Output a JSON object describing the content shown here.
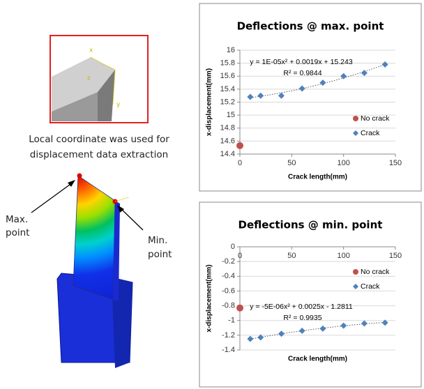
{
  "figure": {
    "inset_axes": [
      "x",
      "z",
      "y"
    ],
    "caption": [
      "Local coordinate was used for",
      "displacement data extraction"
    ],
    "max_label": [
      "Max.",
      "point"
    ],
    "min_label": [
      "Min.",
      "point"
    ]
  },
  "chart_data": [
    {
      "type": "scatter",
      "title": "Deflections @ max. point",
      "x_label": "Crack length(mm)",
      "y_label": "x-displacement(mm)",
      "xlim": [
        0,
        150
      ],
      "xticks": [
        0,
        50,
        100,
        150
      ],
      "ylim": [
        14.4,
        16
      ],
      "yticks": [
        14.4,
        14.6,
        14.8,
        15,
        15.2,
        15.4,
        15.6,
        15.8,
        16
      ],
      "grid": true,
      "legend": "right",
      "annotations": [
        "y = 1E-05x² + 0.0019x + 15.243",
        "R² = 0.9844"
      ],
      "series": [
        {
          "name": "No crack",
          "color": "#c0504d",
          "marker": "circle",
          "x": [
            0
          ],
          "values": [
            14.53
          ]
        },
        {
          "name": "Crack",
          "color": "#4f81bd",
          "marker": "diamond",
          "trendline": true,
          "x": [
            10,
            20,
            40,
            60,
            80,
            100,
            120,
            140
          ],
          "values": [
            15.28,
            15.3,
            15.3,
            15.41,
            15.5,
            15.6,
            15.65,
            15.78
          ]
        }
      ]
    },
    {
      "type": "scatter",
      "title": "Deflections @ min. point",
      "x_label": "Crack length(mm)",
      "y_label": "x-displacement(mm)",
      "xlim": [
        0,
        150
      ],
      "xticks": [
        0,
        50,
        100,
        150
      ],
      "ylim": [
        -1.4,
        0
      ],
      "yticks": [
        0,
        -0.2,
        -0.4,
        -0.6,
        -0.8,
        -1,
        -1.2,
        -1.4
      ],
      "grid": true,
      "legend": "right",
      "annotations": [
        "y = -5E-06x² + 0.0025x - 1.2811",
        "R² = 0.9935"
      ],
      "series": [
        {
          "name": "No crack",
          "color": "#c0504d",
          "marker": "circle",
          "x": [
            0
          ],
          "values": [
            -0.83
          ]
        },
        {
          "name": "Crack",
          "color": "#4f81bd",
          "marker": "diamond",
          "trendline": true,
          "x": [
            10,
            20,
            40,
            60,
            80,
            100,
            120,
            140
          ],
          "values": [
            -1.25,
            -1.23,
            -1.18,
            -1.14,
            -1.11,
            -1.07,
            -1.04,
            -1.03
          ]
        }
      ]
    }
  ]
}
